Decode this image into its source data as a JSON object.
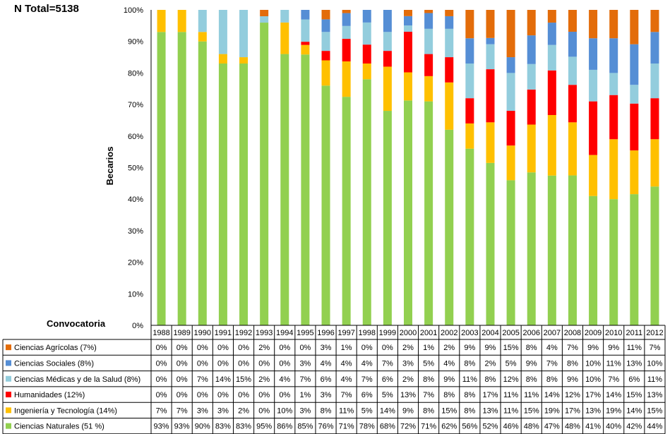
{
  "chart_data": {
    "type": "bar",
    "stacked": true,
    "title": "N Total=5138",
    "ylabel": "Becarios",
    "xlabel": "Convocatoria",
    "ylim": [
      0,
      100
    ],
    "yticks": [
      "0%",
      "10%",
      "20%",
      "30%",
      "40%",
      "50%",
      "60%",
      "70%",
      "80%",
      "90%",
      "100%"
    ],
    "categories": [
      "1988",
      "1989",
      "1990",
      "1991",
      "1992",
      "1993",
      "1994",
      "1995",
      "1996",
      "1997",
      "1998",
      "1999",
      "2000",
      "2001",
      "2002",
      "2003",
      "2004",
      "2005",
      "2006",
      "2007",
      "2008",
      "2009",
      "2010",
      "2011",
      "2012"
    ],
    "series": [
      {
        "name": "Ciencias Agrícolas (7%)",
        "color": "#E36C0A",
        "values": [
          0,
          0,
          0,
          0,
          0,
          2,
          0,
          0,
          3,
          1,
          0,
          0,
          2,
          1,
          2,
          9,
          9,
          15,
          8,
          4,
          7,
          9,
          9,
          11,
          7
        ],
        "labels": [
          "0%",
          "0%",
          "0%",
          "0%",
          "0%",
          "2%",
          "0%",
          "0%",
          "3%",
          "1%",
          "0%",
          "0%",
          "2%",
          "1%",
          "2%",
          "9%",
          "9%",
          "15%",
          "8%",
          "4%",
          "7%",
          "9%",
          "9%",
          "11%",
          "7%"
        ]
      },
      {
        "name": "Ciencias Sociales (8%)",
        "color": "#558ED5",
        "values": [
          0,
          0,
          0,
          0,
          0,
          0,
          0,
          3,
          4,
          4,
          4,
          7,
          3,
          5,
          4,
          8,
          2,
          5,
          9,
          7,
          8,
          10,
          11,
          13,
          10
        ],
        "labels": [
          "0%",
          "0%",
          "0%",
          "0%",
          "0%",
          "0%",
          "0%",
          "3%",
          "4%",
          "4%",
          "4%",
          "7%",
          "3%",
          "5%",
          "4%",
          "8%",
          "2%",
          "5%",
          "9%",
          "7%",
          "8%",
          "10%",
          "11%",
          "13%",
          "10%"
        ]
      },
      {
        "name": "Ciencias Médicas y de la Salud (8%)",
        "color": "#93CDDD",
        "values": [
          0,
          0,
          7,
          14,
          15,
          2,
          4,
          7,
          6,
          4,
          7,
          6,
          2,
          8,
          9,
          11,
          8,
          12,
          8,
          8,
          9,
          10,
          7,
          6,
          11
        ],
        "labels": [
          "0%",
          "0%",
          "7%",
          "14%",
          "15%",
          "2%",
          "4%",
          "7%",
          "6%",
          "4%",
          "7%",
          "6%",
          "2%",
          "8%",
          "9%",
          "11%",
          "8%",
          "12%",
          "8%",
          "8%",
          "9%",
          "10%",
          "7%",
          "6%",
          "11%"
        ]
      },
      {
        "name": "Humanidades (12%)",
        "color": "#FF0000",
        "values": [
          0,
          0,
          0,
          0,
          0,
          0,
          0,
          1,
          3,
          7,
          6,
          5,
          13,
          7,
          8,
          8,
          17,
          11,
          11,
          14,
          12,
          17,
          14,
          15,
          13
        ],
        "labels": [
          "0%",
          "0%",
          "0%",
          "0%",
          "0%",
          "0%",
          "0%",
          "1%",
          "3%",
          "7%",
          "6%",
          "5%",
          "13%",
          "7%",
          "8%",
          "8%",
          "17%",
          "11%",
          "11%",
          "14%",
          "12%",
          "17%",
          "14%",
          "15%",
          "13%"
        ]
      },
      {
        "name": "Ingeniería y Tecnología (14%)",
        "color": "#FFC000",
        "values": [
          7,
          7,
          3,
          3,
          2,
          0,
          10,
          3,
          8,
          11,
          5,
          14,
          9,
          8,
          15,
          8,
          13,
          11,
          15,
          19,
          17,
          13,
          19,
          14,
          15
        ],
        "labels": [
          "7%",
          "7%",
          "3%",
          "3%",
          "2%",
          "0%",
          "10%",
          "3%",
          "8%",
          "11%",
          "5%",
          "14%",
          "9%",
          "8%",
          "15%",
          "8%",
          "13%",
          "11%",
          "15%",
          "19%",
          "17%",
          "13%",
          "19%",
          "14%",
          "15%"
        ]
      },
      {
        "name": "Ciencias Naturales (51 %)",
        "color": "#92D050",
        "values": [
          93,
          93,
          90,
          83,
          83,
          95,
          86,
          85,
          76,
          71,
          78,
          68,
          72,
          71,
          62,
          56,
          52,
          46,
          48,
          47,
          48,
          41,
          40,
          42,
          44
        ],
        "labels": [
          "93%",
          "93%",
          "90%",
          "83%",
          "83%",
          "95%",
          "86%",
          "85%",
          "76%",
          "71%",
          "78%",
          "68%",
          "72%",
          "71%",
          "62%",
          "56%",
          "52%",
          "46%",
          "48%",
          "47%",
          "48%",
          "41%",
          "40%",
          "42%",
          "44%"
        ]
      }
    ],
    "legend_placement": "table-left",
    "grid": false
  }
}
